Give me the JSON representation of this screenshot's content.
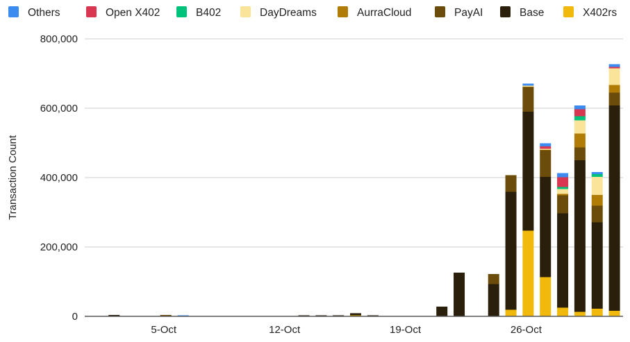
{
  "chart_data": {
    "type": "bar",
    "stacked": true,
    "title": "",
    "xlabel": "",
    "ylabel": "Transaction Count",
    "ylim": [
      0,
      800000
    ],
    "yticks": [
      "0",
      "200,000",
      "400,000",
      "600,000",
      "800,000"
    ],
    "ytick_values": [
      0,
      200000,
      400000,
      600000,
      800000
    ],
    "grid": true,
    "legend_position": "top",
    "categories": [
      "1-Oct",
      "2-Oct",
      "3-Oct",
      "4-Oct",
      "5-Oct",
      "6-Oct",
      "7-Oct",
      "8-Oct",
      "9-Oct",
      "10-Oct",
      "11-Oct",
      "12-Oct",
      "13-Oct",
      "14-Oct",
      "15-Oct",
      "16-Oct",
      "17-Oct",
      "18-Oct",
      "19-Oct",
      "20-Oct",
      "21-Oct",
      "22-Oct",
      "23-Oct",
      "24-Oct",
      "25-Oct",
      "26-Oct",
      "27-Oct",
      "28-Oct",
      "29-Oct",
      "30-Oct",
      "31-Oct"
    ],
    "xtick_labels": [
      "5-Oct",
      "12-Oct",
      "19-Oct",
      "26-Oct"
    ],
    "series": [
      {
        "name": "X402rs",
        "color": "#f0b90b",
        "values": [
          0,
          0,
          0,
          0,
          0,
          0,
          0,
          0,
          0,
          0,
          0,
          0,
          0,
          0,
          0,
          3000,
          0,
          0,
          0,
          0,
          0,
          0,
          0,
          0,
          19000,
          247000,
          113000,
          25000,
          13000,
          22000,
          16000
        ]
      },
      {
        "name": "Base",
        "color": "#2a1f0b",
        "values": [
          0,
          4000,
          0,
          0,
          3000,
          0,
          0,
          0,
          0,
          0,
          0,
          0,
          3000,
          3000,
          3000,
          6000,
          3000,
          0,
          0,
          0,
          28000,
          126000,
          0,
          93000,
          340000,
          343000,
          289000,
          272000,
          437000,
          249000,
          592000
        ]
      },
      {
        "name": "PayAI",
        "color": "#6b4c0b",
        "values": [
          0,
          0,
          0,
          0,
          1000,
          0,
          0,
          0,
          0,
          0,
          0,
          0,
          0,
          0,
          0,
          0,
          0,
          0,
          0,
          0,
          0,
          0,
          0,
          29000,
          48000,
          72000,
          77000,
          52000,
          37000,
          48000,
          37000
        ]
      },
      {
        "name": "AurraCloud",
        "color": "#b07c05",
        "values": [
          0,
          0,
          0,
          0,
          0,
          0,
          0,
          0,
          0,
          0,
          0,
          0,
          0,
          0,
          0,
          0,
          0,
          0,
          0,
          0,
          0,
          0,
          0,
          0,
          0,
          2000,
          3000,
          4000,
          40000,
          31000,
          22000
        ]
      },
      {
        "name": "DayDreams",
        "color": "#f9e49a",
        "values": [
          0,
          0,
          0,
          0,
          0,
          0,
          0,
          0,
          0,
          0,
          0,
          0,
          0,
          0,
          0,
          0,
          0,
          0,
          0,
          0,
          0,
          0,
          0,
          0,
          0,
          1000,
          1000,
          14000,
          38000,
          52000,
          48000
        ]
      },
      {
        "name": "B402",
        "color": "#00c27a",
        "values": [
          0,
          0,
          0,
          0,
          0,
          0,
          0,
          0,
          0,
          0,
          0,
          0,
          0,
          0,
          0,
          0,
          0,
          0,
          0,
          0,
          0,
          0,
          0,
          0,
          0,
          0,
          0,
          6000,
          12000,
          8000,
          0
        ]
      },
      {
        "name": "Open X402",
        "color": "#d93651",
        "values": [
          0,
          0,
          0,
          0,
          0,
          0,
          0,
          0,
          0,
          0,
          0,
          0,
          0,
          0,
          0,
          0,
          0,
          0,
          0,
          0,
          0,
          0,
          0,
          0,
          0,
          0,
          7000,
          28000,
          20000,
          0,
          4000
        ]
      },
      {
        "name": "Others",
        "color": "#3b8bf0",
        "values": [
          0,
          0,
          0,
          0,
          0,
          3000,
          0,
          0,
          0,
          0,
          0,
          0,
          0,
          0,
          0,
          0,
          0,
          0,
          0,
          0,
          0,
          0,
          0,
          0,
          0,
          6000,
          9000,
          12000,
          11000,
          6000,
          8000
        ]
      }
    ],
    "legend_order": [
      "Others",
      "Open X402",
      "B402",
      "DayDreams",
      "AurraCloud",
      "PayAI",
      "Base",
      "X402rs"
    ]
  }
}
